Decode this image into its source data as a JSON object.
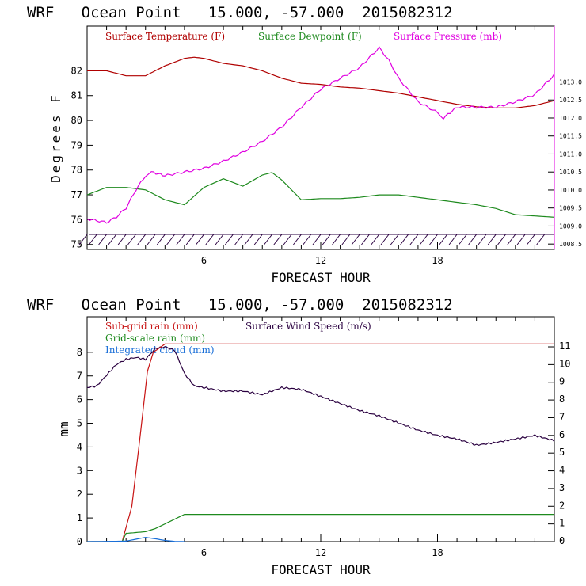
{
  "colors": {
    "temperature": "#b00000",
    "dewpoint": "#1e8a1e",
    "pressure": "#e000e0",
    "wind": "#2a0040",
    "subgrid_rain": "#c81414",
    "gridscale_rain": "#1e8a1e",
    "cloud": "#1a6fd8",
    "axis": "#000000"
  },
  "chart_data": [
    {
      "type": "line",
      "title": "WRF   Ocean Point   15.000, -57.000  2015082312",
      "xlabel": "FORECAST HOUR",
      "ylabel": "Degrees F",
      "xlim": [
        0,
        24
      ],
      "ylim": [
        74.8,
        83.8
      ],
      "y2lim": [
        1008.35,
        1014.55
      ],
      "x_ticks": [
        6,
        12,
        18
      ],
      "y_ticks": [
        75,
        76,
        77,
        78,
        79,
        80,
        81,
        82
      ],
      "y2_ticks": [
        "1008.5",
        "1009.0",
        "1009.5",
        "1010.0",
        "1010.5",
        "1011.0",
        "1011.5",
        "1012.0",
        "1012.5",
        "1013.0"
      ],
      "legend": [
        "Surface Temperature (F)",
        "Surface Dewpoint (F)",
        "Surface Pressure (mb)"
      ],
      "series": [
        {
          "name": "Surface Temperature (F)",
          "axis": "left",
          "x": [
            0,
            1,
            2,
            3,
            4,
            5,
            5.5,
            6,
            7,
            8,
            9,
            10,
            11,
            12,
            13,
            14,
            15,
            16,
            17,
            18,
            19,
            20,
            21,
            22,
            23,
            24
          ],
          "y": [
            82.0,
            82.0,
            81.8,
            81.8,
            82.2,
            82.5,
            82.55,
            82.5,
            82.3,
            82.2,
            82.0,
            81.7,
            81.5,
            81.45,
            81.35,
            81.3,
            81.2,
            81.1,
            80.95,
            80.8,
            80.65,
            80.55,
            80.5,
            80.5,
            80.6,
            80.8
          ]
        },
        {
          "name": "Surface Dewpoint (F)",
          "axis": "left",
          "x": [
            0,
            1,
            2,
            3,
            4,
            5,
            6,
            7,
            8,
            9,
            9.5,
            10,
            11,
            12,
            13,
            14,
            15,
            16,
            17,
            18,
            19,
            20,
            21,
            22,
            23,
            24
          ],
          "y": [
            77.0,
            77.3,
            77.3,
            77.2,
            76.8,
            76.6,
            77.3,
            77.65,
            77.35,
            77.8,
            77.9,
            77.6,
            76.8,
            76.85,
            76.85,
            76.9,
            77.0,
            77.0,
            76.9,
            76.8,
            76.7,
            76.6,
            76.45,
            76.2,
            76.15,
            76.1
          ]
        },
        {
          "name": "Surface Pressure (mb)",
          "axis": "right",
          "x": [
            0,
            1,
            1.5,
            2,
            2.5,
            3,
            3.3,
            4,
            5,
            6,
            7,
            8,
            9,
            10,
            11,
            12,
            13,
            14,
            15,
            15.5,
            16,
            17,
            18,
            18.3,
            19,
            20,
            21,
            22,
            23,
            24
          ],
          "y": [
            1009.2,
            1009.1,
            1009.25,
            1009.5,
            1010.0,
            1010.4,
            1010.5,
            1010.4,
            1010.5,
            1010.6,
            1010.8,
            1011.05,
            1011.35,
            1011.75,
            1012.3,
            1012.8,
            1013.1,
            1013.4,
            1013.95,
            1013.6,
            1013.1,
            1012.45,
            1012.15,
            1012.0,
            1012.3,
            1012.3,
            1012.3,
            1012.45,
            1012.65,
            1013.2
          ]
        }
      ]
    },
    {
      "type": "line",
      "title": "WRF   Ocean Point   15.000, -57.000  2015082312",
      "xlabel": "FORECAST HOUR",
      "ylabel": "mm",
      "xlim": [
        0,
        24
      ],
      "ylim": [
        0,
        9.5
      ],
      "y2lim": [
        0,
        12.7
      ],
      "x_ticks": [
        6,
        12,
        18
      ],
      "y_ticks": [
        0,
        1,
        2,
        3,
        4,
        5,
        6,
        7,
        8
      ],
      "y2_ticks": [
        0,
        1,
        2,
        3,
        4,
        5,
        6,
        7,
        8,
        9,
        10,
        11
      ],
      "legend": [
        "Sub-grid rain (mm)",
        "Surface Wind Speed (m/s)",
        "Grid-scale rain (mm)",
        "Integrated cloud (mm)"
      ],
      "series": [
        {
          "name": "Sub-grid rain (mm)",
          "axis": "left",
          "x": [
            0,
            1.8,
            2.3,
            2.8,
            3.1,
            3.4,
            4,
            24
          ],
          "y": [
            0,
            0,
            1.5,
            5.0,
            7.2,
            8.0,
            8.35,
            8.35
          ]
        },
        {
          "name": "Surface Wind Speed (m/s)",
          "axis": "right",
          "x": [
            0,
            0.5,
            1,
            1.5,
            2,
            2.5,
            3,
            3.5,
            4,
            4.5,
            5,
            5.5,
            6,
            7,
            8,
            9,
            10,
            11,
            12,
            13,
            14,
            15,
            16,
            17,
            18,
            19,
            20,
            21,
            22,
            23,
            24
          ],
          "y": [
            8.7,
            8.8,
            9.4,
            10.0,
            10.3,
            10.4,
            10.3,
            10.9,
            11.0,
            10.8,
            9.5,
            8.8,
            8.7,
            8.5,
            8.5,
            8.3,
            8.7,
            8.6,
            8.2,
            7.8,
            7.4,
            7.1,
            6.7,
            6.3,
            6.0,
            5.8,
            5.45,
            5.6,
            5.8,
            6.0,
            5.7
          ]
        },
        {
          "name": "Grid-scale rain (mm)",
          "axis": "left",
          "x": [
            0,
            1.8,
            2,
            3,
            3.5,
            4,
            5,
            24
          ],
          "y": [
            0,
            0,
            0.35,
            0.42,
            0.55,
            0.75,
            1.15,
            1.15
          ]
        },
        {
          "name": "Integrated cloud (mm)",
          "axis": "left",
          "x": [
            0,
            2,
            2.5,
            3,
            3.5,
            4,
            4.5,
            5
          ],
          "y": [
            0,
            0.02,
            0.1,
            0.18,
            0.12,
            0.05,
            0.01,
            0
          ]
        }
      ]
    }
  ]
}
